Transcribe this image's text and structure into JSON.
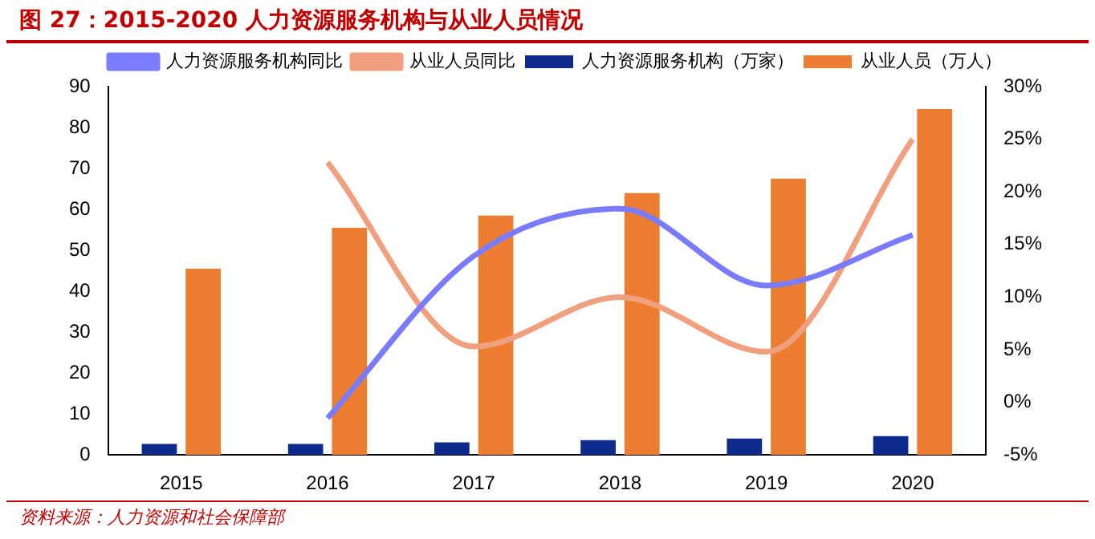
{
  "chart_data": {
    "type": "bar",
    "title": "图 27：2015-2020 人力资源服务机构与从业人员情况",
    "categories": [
      "2015",
      "2016",
      "2017",
      "2018",
      "2019",
      "2020"
    ],
    "series": [
      {
        "name": "人力资源服务机构（万家）",
        "color": "#0e2a8c",
        "values": [
          2.7,
          2.7,
          3.1,
          3.6,
          4.0,
          4.6
        ]
      },
      {
        "name": "从业人员（万人）",
        "color": "#ed7d31",
        "values": [
          45.5,
          55.5,
          58.5,
          64,
          67.5,
          84.5
        ]
      },
      {
        "name": "人力资源服务机构同比",
        "type": "line",
        "axis": "y2",
        "color": "#7b7bff",
        "values": [
          null,
          -1.5,
          13.9,
          18.4,
          11.1,
          15.9
        ]
      },
      {
        "name": "从业人员同比",
        "type": "line",
        "axis": "y2",
        "color": "#f0a07f",
        "values": [
          null,
          22.8,
          5.3,
          10.0,
          4.8,
          25.0
        ]
      }
    ],
    "ylim": [
      0,
      90
    ],
    "yticks": [
      0,
      10,
      20,
      30,
      40,
      50,
      60,
      70,
      80,
      90
    ],
    "y2lim": [
      -5,
      30
    ],
    "y2ticks": [
      {
        "value": -5,
        "label": "-5%"
      },
      {
        "value": 0,
        "label": "0%"
      },
      {
        "value": 5,
        "label": "5%"
      },
      {
        "value": 10,
        "label": "10%"
      },
      {
        "value": 15,
        "label": "15%"
      },
      {
        "value": 20,
        "label": "20%"
      },
      {
        "value": 25,
        "label": "25%"
      },
      {
        "value": 30,
        "label": "30%"
      }
    ],
    "grid": false,
    "legend": "top",
    "marker": "none",
    "annotations": [
      "资料来源：人力资源和社会保障部"
    ]
  }
}
